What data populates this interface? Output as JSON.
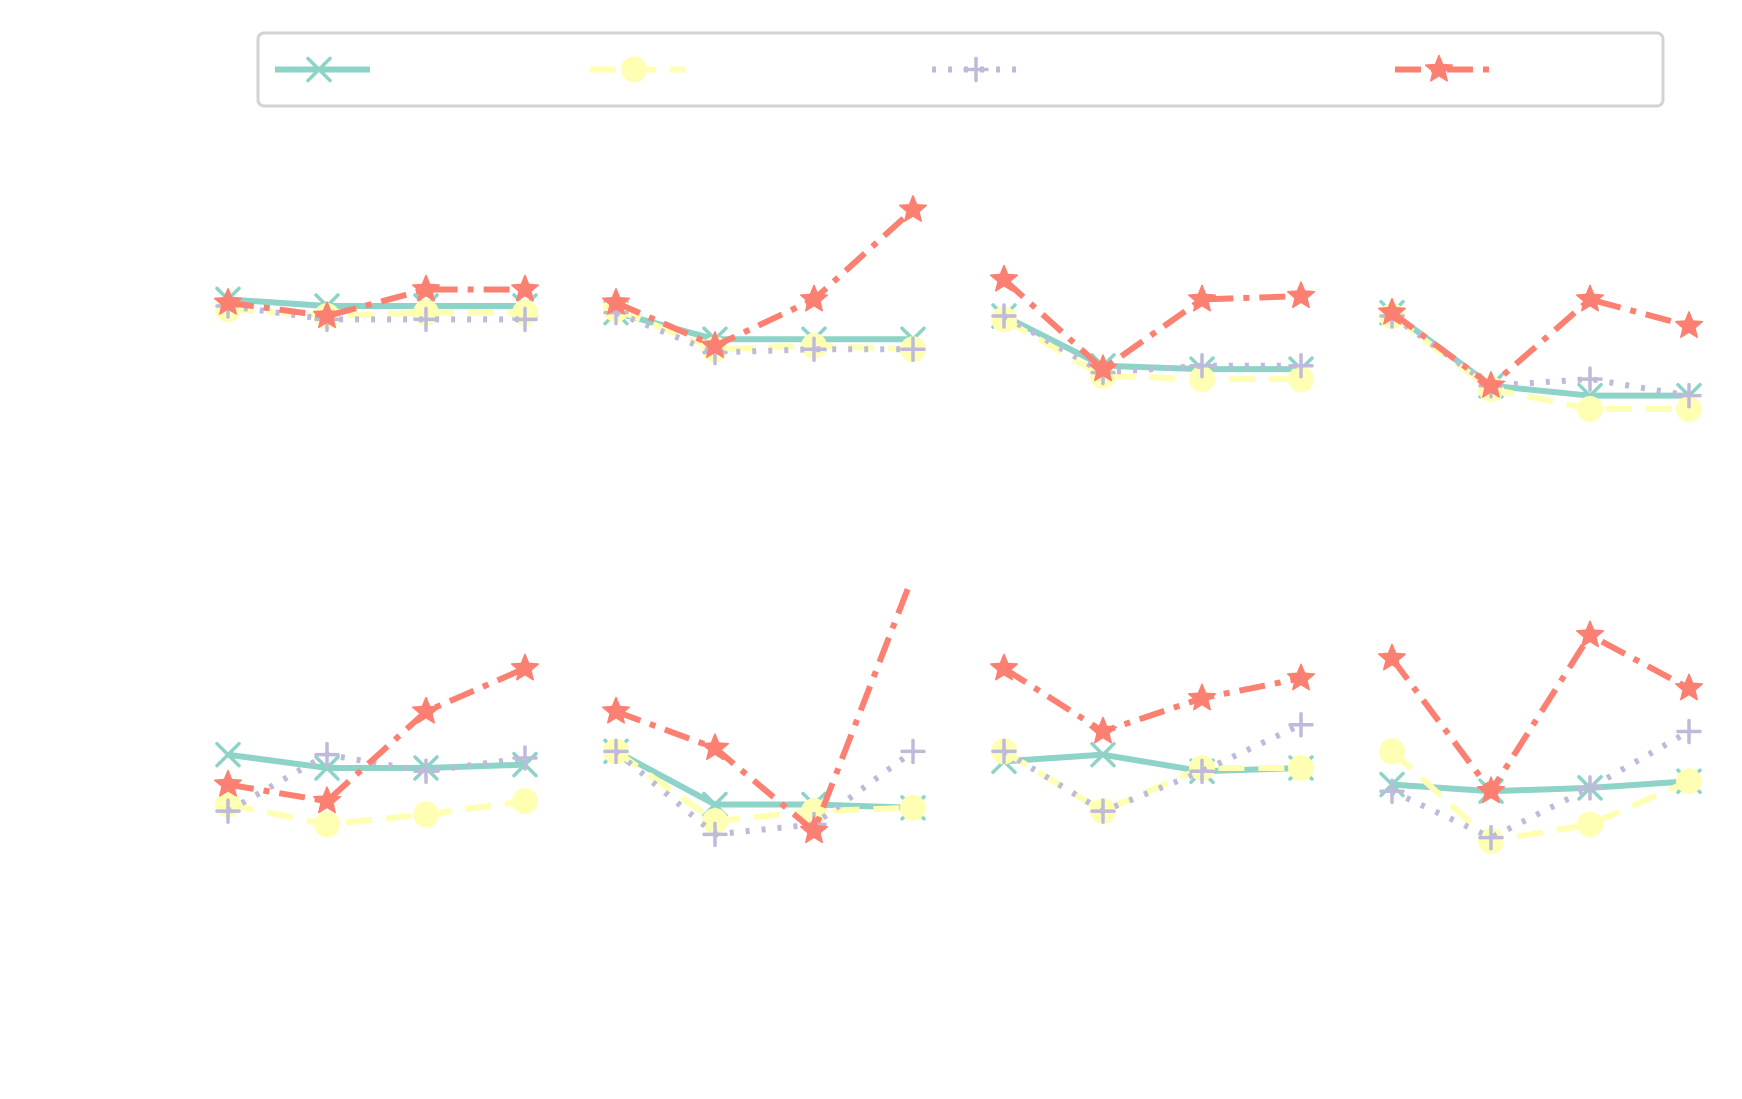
{
  "figure": {
    "background": "#ffffff"
  },
  "legend": {
    "placement": "top",
    "border_color": "#d3d3d3",
    "entries": [
      {
        "series_index": 0,
        "label": ""
      },
      {
        "series_index": 1,
        "label": ""
      },
      {
        "series_index": 2,
        "label": ""
      },
      {
        "series_index": 3,
        "label": ""
      }
    ]
  },
  "series_styles": [
    {
      "color": "#8dd3c7",
      "marker": "x-icon",
      "dash": "solid"
    },
    {
      "color": "#ffffb3",
      "marker": "circle-icon",
      "dash": "dashed"
    },
    {
      "color": "#bebada",
      "marker": "plus-icon",
      "dash": "dotted"
    },
    {
      "color": "#fb8072",
      "marker": "star-icon",
      "dash": "dashdot"
    }
  ],
  "chart_data": [
    {
      "type": "line",
      "title": "",
      "xlabel": "",
      "ylabel": "",
      "grid": false,
      "x": [
        0,
        1,
        2,
        3
      ],
      "xlim": [
        0,
        3
      ],
      "ylim": [
        0,
        1
      ],
      "series": [
        {
          "values": [
            0.55,
            0.53,
            0.53,
            0.53
          ]
        },
        {
          "values": [
            0.52,
            0.5,
            0.51,
            0.51
          ]
        },
        {
          "values": [
            0.53,
            0.49,
            0.49,
            0.49
          ]
        },
        {
          "values": [
            0.54,
            0.5,
            0.58,
            0.58
          ]
        }
      ]
    },
    {
      "type": "line",
      "title": "",
      "xlabel": "",
      "ylabel": "",
      "grid": false,
      "x": [
        0,
        1,
        2,
        3
      ],
      "xlim": [
        0,
        3
      ],
      "ylim": [
        0,
        1
      ],
      "series": [
        {
          "values": [
            0.51,
            0.43,
            0.43,
            0.43
          ]
        },
        {
          "values": [
            0.52,
            0.4,
            0.41,
            0.4
          ]
        },
        {
          "values": [
            0.51,
            0.39,
            0.4,
            0.4
          ]
        },
        {
          "values": [
            0.54,
            0.41,
            0.55,
            0.82
          ]
        }
      ]
    },
    {
      "type": "line",
      "title": "",
      "xlabel": "",
      "ylabel": "",
      "grid": false,
      "x": [
        0,
        1,
        2,
        3
      ],
      "xlim": [
        0,
        3
      ],
      "ylim": [
        0,
        1
      ],
      "series": [
        {
          "values": [
            0.5,
            0.35,
            0.34,
            0.34
          ]
        },
        {
          "values": [
            0.49,
            0.32,
            0.31,
            0.31
          ]
        },
        {
          "values": [
            0.5,
            0.33,
            0.35,
            0.35
          ]
        },
        {
          "values": [
            0.61,
            0.34,
            0.55,
            0.56
          ]
        }
      ]
    },
    {
      "type": "line",
      "title": "",
      "xlabel": "",
      "ylabel": "",
      "grid": false,
      "x": [
        0,
        1,
        2,
        3
      ],
      "xlim": [
        0,
        3
      ],
      "ylim": [
        0,
        1
      ],
      "series": [
        {
          "values": [
            0.51,
            0.29,
            0.26,
            0.26
          ]
        },
        {
          "values": [
            0.5,
            0.28,
            0.22,
            0.22
          ]
        },
        {
          "values": [
            0.5,
            0.29,
            0.31,
            0.26
          ]
        },
        {
          "values": [
            0.51,
            0.29,
            0.55,
            0.47
          ]
        }
      ]
    },
    {
      "type": "line",
      "title": "",
      "xlabel": "",
      "ylabel": "",
      "grid": false,
      "x": [
        0,
        1,
        2,
        3
      ],
      "xlim": [
        0,
        3
      ],
      "ylim": [
        0,
        1
      ],
      "series": [
        {
          "values": [
            0.51,
            0.47,
            0.47,
            0.48
          ]
        },
        {
          "values": [
            0.36,
            0.3,
            0.33,
            0.37
          ]
        },
        {
          "values": [
            0.34,
            0.51,
            0.46,
            0.5
          ]
        },
        {
          "values": [
            0.42,
            0.37,
            0.64,
            0.77
          ]
        }
      ]
    },
    {
      "type": "line",
      "title": "",
      "xlabel": "",
      "ylabel": "",
      "grid": false,
      "x": [
        0,
        1,
        2,
        3
      ],
      "xlim": [
        0,
        3
      ],
      "ylim": [
        0,
        1
      ],
      "series": [
        {
          "values": [
            0.52,
            0.36,
            0.36,
            0.35
          ]
        },
        {
          "values": [
            0.52,
            0.31,
            0.34,
            0.35
          ]
        },
        {
          "values": [
            0.52,
            0.27,
            0.3,
            0.52
          ]
        },
        {
          "values": [
            0.64,
            0.53,
            0.28,
            1.05
          ]
        }
      ]
    },
    {
      "type": "line",
      "title": "",
      "xlabel": "",
      "ylabel": "",
      "grid": false,
      "x": [
        0,
        1,
        2,
        3
      ],
      "xlim": [
        0,
        3
      ],
      "ylim": [
        0,
        1
      ],
      "series": [
        {
          "values": [
            0.49,
            0.51,
            0.46,
            0.47
          ]
        },
        {
          "values": [
            0.52,
            0.34,
            0.47,
            0.47
          ]
        },
        {
          "values": [
            0.52,
            0.34,
            0.46,
            0.6
          ]
        },
        {
          "values": [
            0.77,
            0.58,
            0.68,
            0.74
          ]
        }
      ]
    },
    {
      "type": "line",
      "title": "",
      "xlabel": "",
      "ylabel": "",
      "grid": false,
      "x": [
        0,
        1,
        2,
        3
      ],
      "xlim": [
        0,
        3
      ],
      "ylim": [
        0,
        1
      ],
      "series": [
        {
          "values": [
            0.42,
            0.4,
            0.41,
            0.43
          ]
        },
        {
          "values": [
            0.52,
            0.25,
            0.3,
            0.43
          ]
        },
        {
          "values": [
            0.4,
            0.26,
            0.41,
            0.58
          ]
        },
        {
          "values": [
            0.8,
            0.4,
            0.87,
            0.71
          ]
        }
      ]
    }
  ]
}
